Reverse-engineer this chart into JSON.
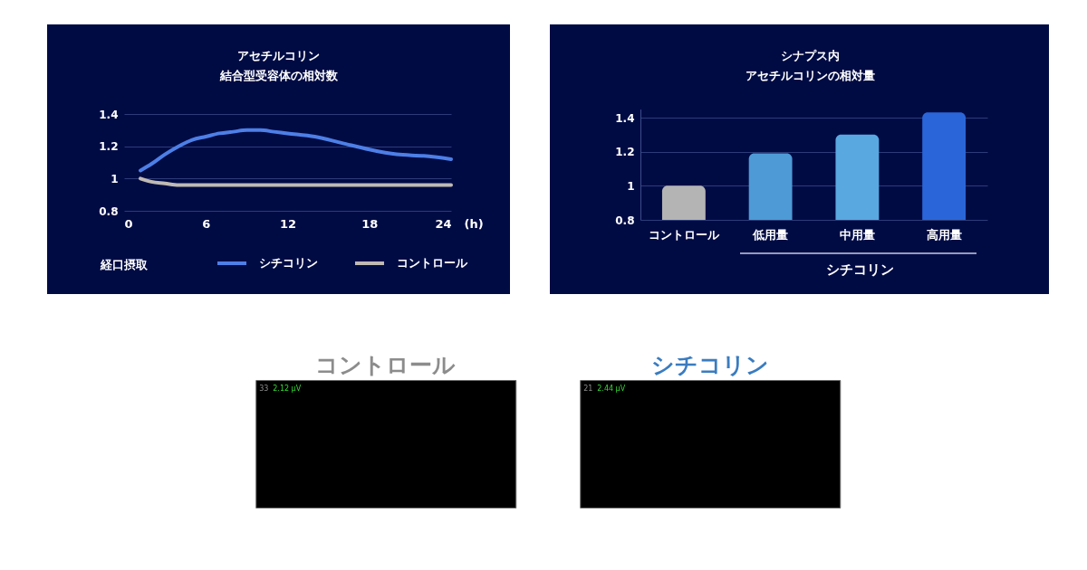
{
  "chart_data": [
    {
      "type": "line",
      "title": "アセチルコリン",
      "subtitle": "結合型受容体の相対数",
      "xlabel": "(h)",
      "xlim": [
        0,
        24
      ],
      "xticks": [
        0,
        6,
        12,
        18,
        24
      ],
      "ylim": [
        0.8,
        1.4
      ],
      "yticks": [
        0.8,
        1,
        1.2,
        1.4
      ],
      "grid": "y",
      "legend": "bottom",
      "series": [
        {
          "name": "シチコリン",
          "color": "#4d7fe6",
          "x": [
            1.2,
            2,
            3,
            4,
            5,
            6,
            7,
            8,
            9,
            10,
            11,
            12,
            14,
            16,
            18,
            20,
            22,
            24
          ],
          "values": [
            1.05,
            1.09,
            1.15,
            1.2,
            1.24,
            1.26,
            1.28,
            1.29,
            1.3,
            1.3,
            1.29,
            1.28,
            1.26,
            1.22,
            1.18,
            1.15,
            1.14,
            1.12
          ]
        },
        {
          "name": "コントロール",
          "color": "#bfbab4",
          "x": [
            1.2,
            2,
            3,
            4,
            6,
            12,
            18,
            24
          ],
          "values": [
            1.0,
            0.98,
            0.97,
            0.96,
            0.96,
            0.96,
            0.96,
            0.96
          ]
        }
      ],
      "annotations": [
        "経口摂取"
      ]
    },
    {
      "type": "bar",
      "title": "シナプス内",
      "subtitle": "アセチルコリンの相対量",
      "categories": [
        "コントロール",
        "低用量",
        "中用量",
        "高用量"
      ],
      "values": [
        1.0,
        1.19,
        1.3,
        1.43
      ],
      "colors": [
        "#b4b4b4",
        "#4d9ad6",
        "#5aa8e0",
        "#2a66d9"
      ],
      "ylim": [
        0.8,
        1.45
      ],
      "yticks": [
        0.8,
        1,
        1.2,
        1.4
      ],
      "grid": "y",
      "annotations": [
        "シチコリン"
      ]
    },
    {
      "type": "other",
      "title": "コントロール",
      "annotations": [
        "33",
        "2.12 μV"
      ]
    },
    {
      "type": "other",
      "title": "シチコリン",
      "annotations": [
        "21",
        "2.44 μV"
      ]
    }
  ]
}
